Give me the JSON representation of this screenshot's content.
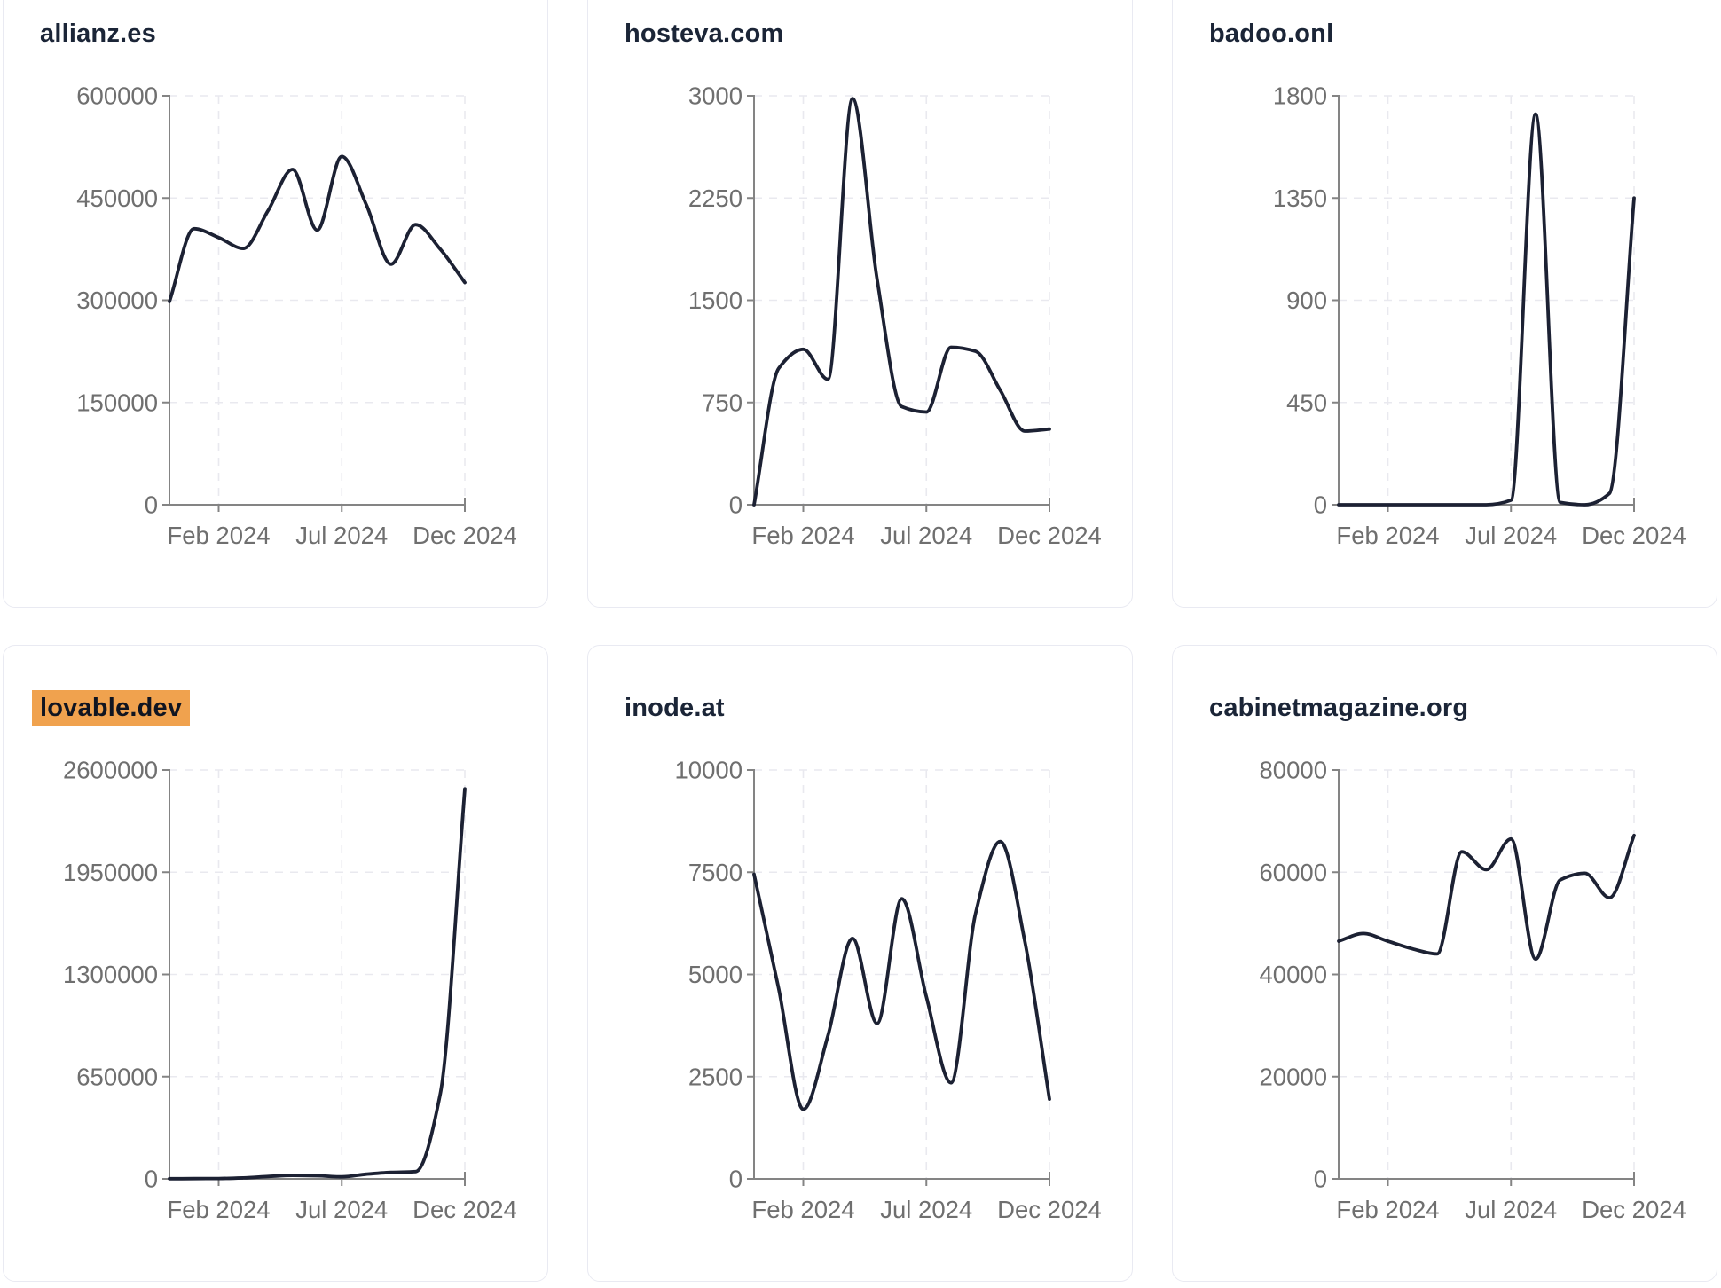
{
  "page": {
    "background": "#ffffff"
  },
  "style": {
    "line_color": "#1c2133",
    "title_color": "#1b2537",
    "highlight_color": "#f0a24e",
    "tick_label_color": "#6f6f6f",
    "axis_color": "#848484",
    "grid_color": "#e9e9ef",
    "card_border": "#e9eaf2",
    "card_background": "#ffffff"
  },
  "months": [
    "Dec 2023",
    "Jan 2024",
    "Feb 2024",
    "Mar 2024",
    "Apr 2024",
    "May 2024",
    "Jun 2024",
    "Jul 2024",
    "Aug 2024",
    "Sep 2024",
    "Oct 2024",
    "Nov 2024",
    "Dec 2024"
  ],
  "chart_data": [
    {
      "type": "line",
      "title": "allianz.es",
      "highlighted": false,
      "x": [
        "Dec 2023",
        "Jan 2024",
        "Feb 2024",
        "Mar 2024",
        "Apr 2024",
        "May 2024",
        "Jun 2024",
        "Jul 2024",
        "Aug 2024",
        "Sep 2024",
        "Oct 2024",
        "Nov 2024",
        "Dec 2024"
      ],
      "values": [
        298000,
        405000,
        392000,
        376000,
        431000,
        492000,
        403000,
        511000,
        440000,
        353000,
        411000,
        375000,
        326000
      ],
      "ylim": [
        0,
        600000
      ],
      "yticks": [
        0,
        150000,
        300000,
        450000,
        600000
      ],
      "xticks": [
        "Feb 2024",
        "Jul 2024",
        "Dec 2024"
      ],
      "xtick_month_index": [
        2,
        7,
        12
      ],
      "grid": "dashed"
    },
    {
      "type": "line",
      "title": "hosteva.com",
      "highlighted": false,
      "x": [
        "Dec 2023",
        "Jan 2024",
        "Feb 2024",
        "Mar 2024",
        "Apr 2024",
        "May 2024",
        "Jun 2024",
        "Jul 2024",
        "Aug 2024",
        "Sep 2024",
        "Oct 2024",
        "Nov 2024",
        "Dec 2024"
      ],
      "values": [
        0,
        1000,
        1140,
        920,
        2980,
        1650,
        720,
        680,
        1155,
        1125,
        840,
        540,
        555
      ],
      "ylim": [
        0,
        3000
      ],
      "yticks": [
        0,
        750,
        1500,
        2250,
        3000
      ],
      "xticks": [
        "Feb 2024",
        "Jul 2024",
        "Dec 2024"
      ],
      "xtick_month_index": [
        2,
        7,
        12
      ],
      "grid": "dashed"
    },
    {
      "type": "line",
      "title": "badoo.onl",
      "highlighted": false,
      "x": [
        "Dec 2023",
        "Jan 2024",
        "Feb 2024",
        "Mar 2024",
        "Apr 2024",
        "May 2024",
        "Jun 2024",
        "Jul 2024",
        "Aug 2024",
        "Sep 2024",
        "Oct 2024",
        "Nov 2024",
        "Dec 2024"
      ],
      "values": [
        0,
        0,
        0,
        0,
        0,
        0,
        0,
        20,
        1720,
        10,
        0,
        50,
        1350
      ],
      "ylim": [
        0,
        1800
      ],
      "yticks": [
        0,
        450,
        900,
        1350,
        1800
      ],
      "xticks": [
        "Feb 2024",
        "Jul 2024",
        "Dec 2024"
      ],
      "xtick_month_index": [
        2,
        7,
        12
      ],
      "grid": "dashed"
    },
    {
      "type": "line",
      "title": "lovable.dev",
      "highlighted": true,
      "x": [
        "Dec 2023",
        "Jan 2024",
        "Feb 2024",
        "Mar 2024",
        "Apr 2024",
        "May 2024",
        "Jun 2024",
        "Jul 2024",
        "Aug 2024",
        "Sep 2024",
        "Oct 2024",
        "Nov 2024",
        "Dec 2024"
      ],
      "values": [
        1000,
        1500,
        2500,
        6000,
        15000,
        22000,
        20000,
        13000,
        30000,
        41000,
        46000,
        540000,
        2480000
      ],
      "ylim": [
        0,
        2600000
      ],
      "yticks": [
        0,
        650000,
        1300000,
        1950000,
        2600000
      ],
      "xticks": [
        "Feb 2024",
        "Jul 2024",
        "Dec 2024"
      ],
      "xtick_month_index": [
        2,
        7,
        12
      ],
      "grid": "dashed"
    },
    {
      "type": "line",
      "title": "inode.at",
      "highlighted": false,
      "x": [
        "Dec 2023",
        "Jan 2024",
        "Feb 2024",
        "Mar 2024",
        "Apr 2024",
        "May 2024",
        "Jun 2024",
        "Jul 2024",
        "Aug 2024",
        "Sep 2024",
        "Oct 2024",
        "Nov 2024",
        "Dec 2024"
      ],
      "values": [
        7450,
        4650,
        1700,
        3500,
        5880,
        3800,
        6850,
        4450,
        2350,
        6500,
        8250,
        5800,
        1950
      ],
      "ylim": [
        0,
        10000
      ],
      "yticks": [
        0,
        2500,
        5000,
        7500,
        10000
      ],
      "xticks": [
        "Feb 2024",
        "Jul 2024",
        "Dec 2024"
      ],
      "xtick_month_index": [
        2,
        7,
        12
      ],
      "grid": "dashed"
    },
    {
      "type": "line",
      "title": "cabinetmagazine.org",
      "highlighted": false,
      "x": [
        "Dec 2023",
        "Jan 2024",
        "Feb 2024",
        "Mar 2024",
        "Apr 2024",
        "May 2024",
        "Jun 2024",
        "Jul 2024",
        "Aug 2024",
        "Sep 2024",
        "Oct 2024",
        "Nov 2024",
        "Dec 2024"
      ],
      "values": [
        46500,
        48000,
        46500,
        45000,
        44000,
        64000,
        60500,
        66500,
        43000,
        58500,
        59800,
        55000,
        67200
      ],
      "ylim": [
        0,
        80000
      ],
      "yticks": [
        0,
        20000,
        40000,
        60000,
        80000
      ],
      "xticks": [
        "Feb 2024",
        "Jul 2024",
        "Dec 2024"
      ],
      "xtick_month_index": [
        2,
        7,
        12
      ],
      "grid": "dashed"
    }
  ]
}
